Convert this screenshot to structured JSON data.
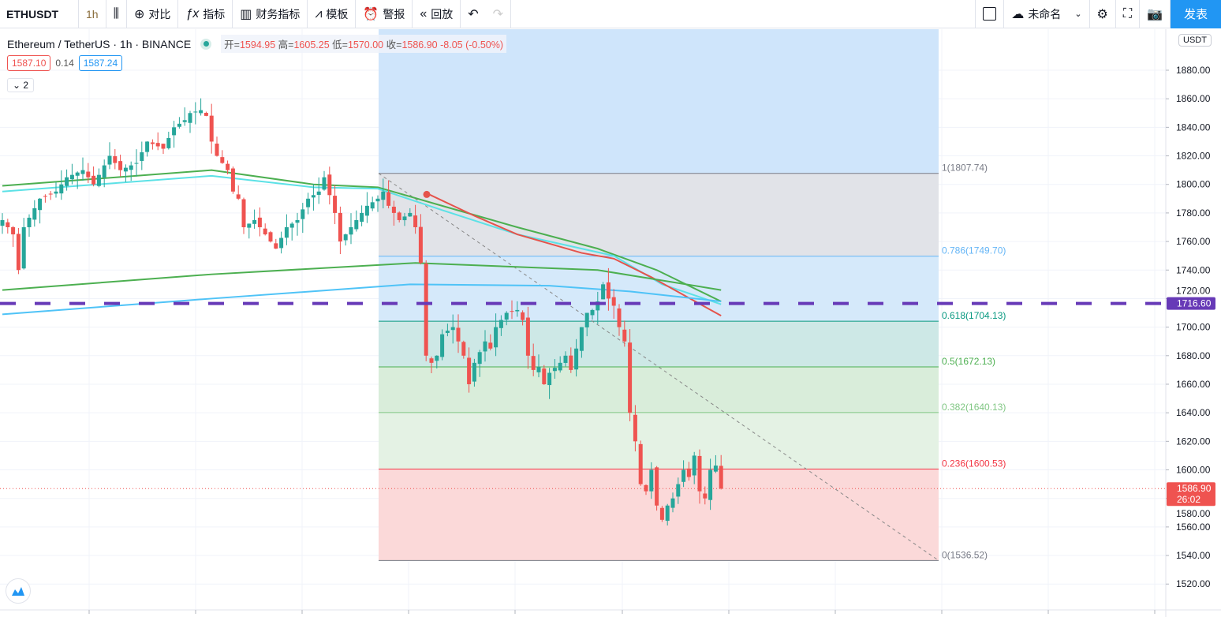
{
  "toolbar": {
    "symbol": "ETHUSDT",
    "interval": "1h",
    "compare": "对比",
    "indicators": "指标",
    "financials": "财务指标",
    "templates": "模板",
    "alerts": "警报",
    "replay": "回放",
    "layout_name": "未命名",
    "publish": "发表"
  },
  "legend": {
    "title": "Ethereum / TetherUS · 1h · BINANCE",
    "open_label": "开=",
    "open": "1594.95",
    "high_label": "高=",
    "high": "1605.25",
    "low_label": "低=",
    "low": "1570.00",
    "close_label": "收=",
    "close": "1586.90",
    "change": "-8.05 (-0.50%)",
    "bid": "1587.10",
    "spread": "0.14",
    "ask": "1587.24",
    "collapse": "2"
  },
  "price_axis": {
    "currency": "USDT",
    "ticks": [
      "1880.00",
      "1860.00",
      "1840.00",
      "1820.00",
      "1800.00",
      "1780.00",
      "1760.00",
      "1740.00",
      "1720.00",
      "1700.00",
      "1680.00",
      "1660.00",
      "1640.00",
      "1620.00",
      "1600.00",
      "1580.00",
      "1560.00",
      "1540.00",
      "1520.00"
    ],
    "alert_label": "1716.60",
    "last_price": "1586.90",
    "countdown": "26:02"
  },
  "colors": {
    "up": "#26a69a",
    "down": "#ef5350",
    "alert": "#673ab7",
    "accent": "#2196f3"
  },
  "chart_data": {
    "type": "candlestick",
    "ylim": [
      1520,
      1890
    ],
    "close_keypoints": [
      [
        0,
        1775
      ],
      [
        2,
        1765
      ],
      [
        3,
        1740
      ],
      [
        4,
        1770
      ],
      [
        7,
        1790
      ],
      [
        10,
        1795
      ],
      [
        12,
        1805
      ],
      [
        15,
        1810
      ],
      [
        17,
        1800
      ],
      [
        20,
        1820
      ],
      [
        22,
        1810
      ],
      [
        25,
        1815
      ],
      [
        27,
        1830
      ],
      [
        30,
        1825
      ],
      [
        32,
        1840
      ],
      [
        34,
        1845
      ],
      [
        35,
        1850
      ],
      [
        37,
        1852
      ],
      [
        38,
        1848
      ],
      [
        39,
        1830
      ],
      [
        40,
        1820
      ],
      [
        42,
        1810
      ],
      [
        43,
        1795
      ],
      [
        44,
        1790
      ],
      [
        45,
        1770
      ],
      [
        47,
        1775
      ],
      [
        49,
        1765
      ],
      [
        51,
        1755
      ],
      [
        53,
        1770
      ],
      [
        55,
        1775
      ],
      [
        57,
        1790
      ],
      [
        59,
        1795
      ],
      [
        60,
        1805
      ],
      [
        62,
        1780
      ],
      [
        63,
        1760
      ],
      [
        64,
        1765
      ],
      [
        66,
        1775
      ],
      [
        68,
        1785
      ],
      [
        70,
        1790
      ],
      [
        71,
        1795
      ],
      [
        72,
        1785
      ],
      [
        74,
        1775
      ],
      [
        76,
        1780
      ],
      [
        77,
        1770
      ],
      [
        78,
        1745
      ],
      [
        79,
        1680
      ],
      [
        80,
        1675
      ],
      [
        81,
        1680
      ],
      [
        82,
        1695
      ],
      [
        84,
        1700
      ],
      [
        85,
        1690
      ],
      [
        86,
        1680
      ],
      [
        87,
        1660
      ],
      [
        88,
        1675
      ],
      [
        90,
        1690
      ],
      [
        91,
        1685
      ],
      [
        92,
        1700
      ],
      [
        94,
        1710
      ],
      [
        96,
        1712
      ],
      [
        97,
        1705
      ],
      [
        98,
        1680
      ],
      [
        99,
        1670
      ],
      [
        100,
        1672
      ],
      [
        101,
        1660
      ],
      [
        102,
        1668
      ],
      [
        104,
        1675
      ],
      [
        105,
        1680
      ],
      [
        106,
        1670
      ],
      [
        107,
        1685
      ],
      [
        108,
        1700
      ],
      [
        109,
        1710
      ],
      [
        110,
        1712
      ],
      [
        111,
        1718
      ],
      [
        112,
        1730
      ],
      [
        113,
        1720
      ],
      [
        114,
        1715
      ],
      [
        115,
        1700
      ],
      [
        116,
        1690
      ],
      [
        117,
        1640
      ],
      [
        118,
        1620
      ],
      [
        119,
        1590
      ],
      [
        120,
        1585
      ],
      [
        121,
        1600
      ],
      [
        122,
        1575
      ],
      [
        123,
        1565
      ],
      [
        124,
        1575
      ],
      [
        125,
        1580
      ],
      [
        126,
        1590
      ],
      [
        127,
        1600
      ],
      [
        128,
        1595
      ],
      [
        129,
        1610
      ],
      [
        130,
        1585
      ],
      [
        131,
        1580
      ],
      [
        132,
        1600
      ],
      [
        133,
        1603
      ],
      [
        134,
        1586.9
      ]
    ],
    "moving_averages": [
      {
        "name": "ma-fast-green",
        "color": "#4caf50",
        "points": [
          [
            0,
            1799
          ],
          [
            39,
            1810
          ],
          [
            58,
            1800
          ],
          [
            70,
            1798
          ],
          [
            82,
            1785
          ],
          [
            96,
            1770
          ],
          [
            111,
            1755
          ],
          [
            122,
            1740
          ],
          [
            134,
            1718
          ]
        ]
      },
      {
        "name": "ma-fast-cyan",
        "color": "#5ce1e6",
        "points": [
          [
            0,
            1795
          ],
          [
            39,
            1806
          ],
          [
            58,
            1798
          ],
          [
            70,
            1797
          ],
          [
            82,
            1782
          ],
          [
            96,
            1765
          ],
          [
            114,
            1750
          ],
          [
            123,
            1730
          ],
          [
            134,
            1716
          ]
        ]
      },
      {
        "name": "ma-red",
        "color": "#e5534b",
        "points": [
          [
            79,
            1794
          ],
          [
            88,
            1778
          ],
          [
            96,
            1765
          ],
          [
            108,
            1752
          ],
          [
            114,
            1748
          ],
          [
            121,
            1735
          ],
          [
            134,
            1708
          ]
        ]
      },
      {
        "name": "ma-slow-green",
        "color": "#4caf50",
        "points": [
          [
            0,
            1726
          ],
          [
            39,
            1737
          ],
          [
            77,
            1745
          ],
          [
            111,
            1740
          ],
          [
            134,
            1726
          ]
        ]
      },
      {
        "name": "ma-slow-blue",
        "color": "#4fc3f7",
        "points": [
          [
            0,
            1709
          ],
          [
            39,
            1720
          ],
          [
            76,
            1730
          ],
          [
            102,
            1729
          ],
          [
            117,
            1725
          ],
          [
            134,
            1718
          ]
        ]
      }
    ],
    "fib_levels": [
      {
        "label": "1(1807.74)",
        "value": 1807.74,
        "color": "#787b86",
        "fill": "#e1e3e8"
      },
      {
        "label": "0.786(1749.70)",
        "value": 1749.7,
        "color": "#64b5f6",
        "fill": "#d5e9fa"
      },
      {
        "label": "0.618(1704.13)",
        "value": 1704.13,
        "color": "#089981",
        "fill": "#cde8e6"
      },
      {
        "label": "0.5(1672.13)",
        "value": 1672.13,
        "color": "#4caf50",
        "fill": "#d9edda"
      },
      {
        "label": "0.382(1640.13)",
        "value": 1640.13,
        "color": "#81c784",
        "fill": "#e4f2e4"
      },
      {
        "label": "0.236(1600.53)",
        "value": 1600.53,
        "color": "#f23645",
        "fill": "#fbd9d9"
      },
      {
        "label": "0(1536.52)",
        "value": 1536.52,
        "color": "#787b86",
        "fill": "none"
      }
    ],
    "alert_level": 1716.6,
    "marker_price": 1793
  }
}
